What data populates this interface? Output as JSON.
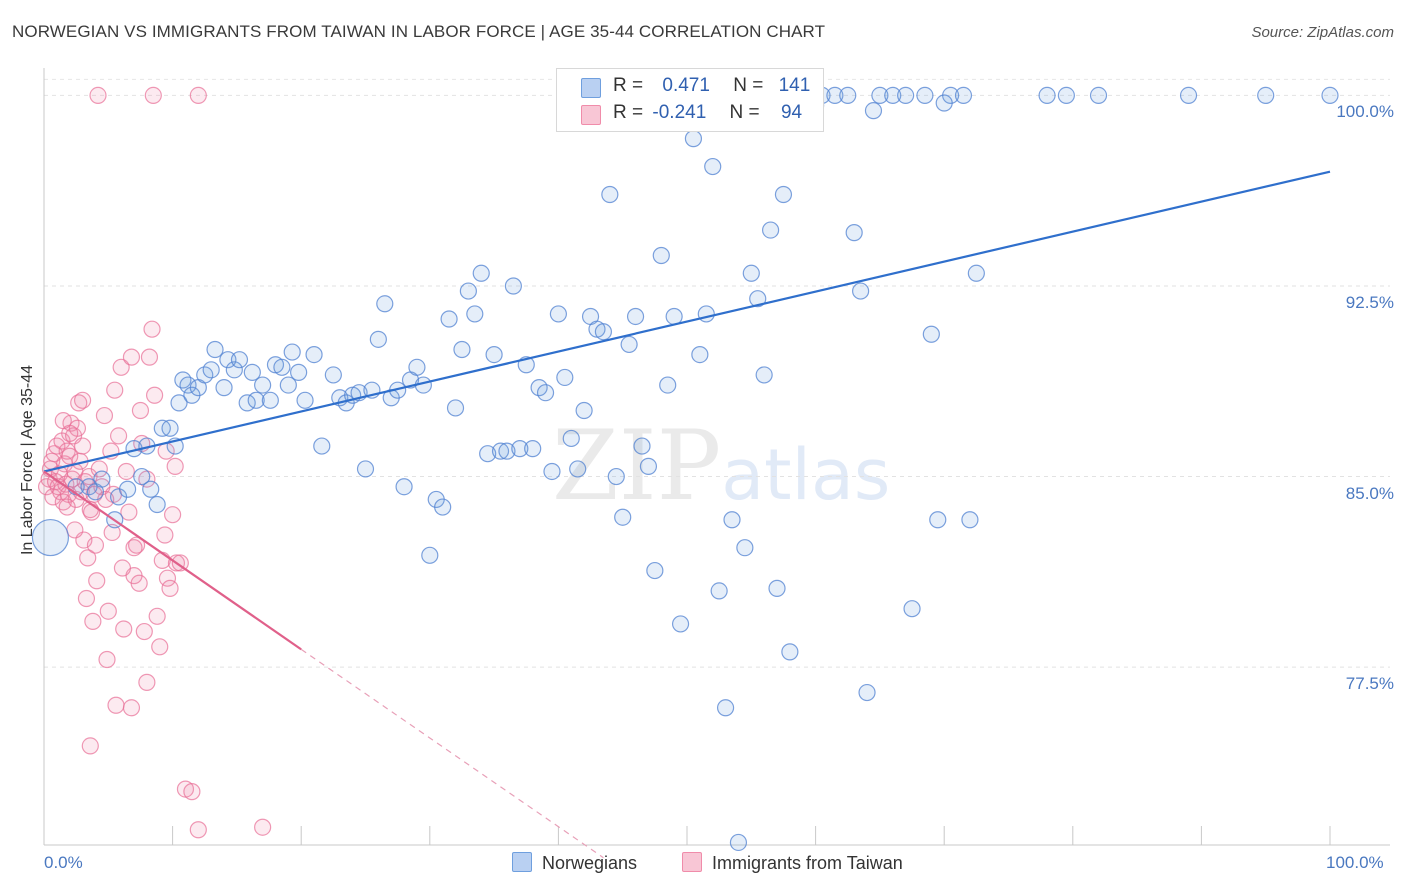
{
  "title": "NORWEGIAN VS IMMIGRANTS FROM TAIWAN IN LABOR FORCE | AGE 35-44 CORRELATION CHART",
  "source": "Source: ZipAtlas.com",
  "watermark": {
    "zip": "ZIP",
    "atlas": "atlas"
  },
  "colors": {
    "blue": "#6f9fde",
    "blue_line": "#2f6fcc",
    "pink": "#f08caa",
    "pink_line": "#e0608a"
  },
  "legend": {
    "rows": [
      {
        "r_label": "R =",
        "r_value": "0.471",
        "n_label": "N =",
        "n_value": "141"
      },
      {
        "r_label": "R =",
        "r_value": "-0.241",
        "n_label": "N =",
        "n_value": "94"
      }
    ]
  },
  "bottom_legend": {
    "norwegians": "Norwegians",
    "taiwan": "Immigrants from Taiwan"
  },
  "chart_data": {
    "type": "scatter",
    "title": "NORWEGIAN VS IMMIGRANTS FROM TAIWAN IN LABOR FORCE | AGE 35-44 CORRELATION CHART",
    "xlabel": "",
    "ylabel": "In Labor Force | Age 35-44",
    "xlim": [
      0,
      100
    ],
    "ylim": [
      70.5,
      101
    ],
    "x_tick_labels": [
      "0.0%",
      "100.0%"
    ],
    "y_ticks": [
      77.5,
      85.0,
      92.5,
      100.0
    ],
    "y_tick_labels": [
      "77.5%",
      "85.0%",
      "92.5%",
      "100.0%"
    ],
    "grid": true,
    "legend_position": "top-center",
    "series": [
      {
        "name": "Norwegians",
        "r": 0.471,
        "n": 141,
        "trend": {
          "x": [
            0,
            100
          ],
          "y": [
            85.2,
            97.0
          ]
        },
        "points": [
          [
            0.5,
            82.6
          ],
          [
            2.5,
            84.6
          ],
          [
            3.5,
            84.6
          ],
          [
            4.0,
            84.4
          ],
          [
            4.5,
            84.9
          ],
          [
            5.5,
            83.3
          ],
          [
            5.8,
            84.2
          ],
          [
            6.5,
            84.5
          ],
          [
            7.0,
            86.1
          ],
          [
            7.6,
            85.0
          ],
          [
            8.0,
            86.2
          ],
          [
            8.3,
            84.5
          ],
          [
            8.8,
            83.9
          ],
          [
            9.2,
            86.9
          ],
          [
            9.8,
            86.9
          ],
          [
            10.2,
            86.2
          ],
          [
            10.5,
            87.9
          ],
          [
            10.8,
            88.8
          ],
          [
            11.2,
            88.6
          ],
          [
            11.5,
            88.2
          ],
          [
            12.0,
            88.5
          ],
          [
            12.5,
            89.0
          ],
          [
            13.0,
            89.2
          ],
          [
            13.3,
            90.0
          ],
          [
            14.0,
            88.5
          ],
          [
            14.3,
            89.6
          ],
          [
            14.8,
            89.2
          ],
          [
            15.2,
            89.6
          ],
          [
            15.8,
            87.9
          ],
          [
            16.2,
            89.1
          ],
          [
            16.5,
            88.0
          ],
          [
            17.0,
            88.6
          ],
          [
            17.6,
            88.0
          ],
          [
            18.0,
            89.4
          ],
          [
            18.5,
            89.3
          ],
          [
            19.0,
            88.6
          ],
          [
            19.3,
            89.9
          ],
          [
            19.8,
            89.1
          ],
          [
            20.3,
            88.0
          ],
          [
            21.0,
            89.8
          ],
          [
            21.6,
            86.2
          ],
          [
            22.5,
            89.0
          ],
          [
            23.0,
            88.1
          ],
          [
            23.5,
            87.9
          ],
          [
            24.0,
            88.2
          ],
          [
            24.5,
            88.3
          ],
          [
            25.0,
            85.3
          ],
          [
            25.5,
            88.4
          ],
          [
            26.0,
            90.4
          ],
          [
            26.5,
            91.8
          ],
          [
            27.0,
            88.1
          ],
          [
            27.5,
            88.4
          ],
          [
            28.0,
            84.6
          ],
          [
            28.5,
            88.8
          ],
          [
            29.0,
            89.3
          ],
          [
            29.5,
            88.6
          ],
          [
            30.0,
            81.9
          ],
          [
            30.5,
            84.1
          ],
          [
            31.0,
            83.8
          ],
          [
            31.5,
            91.2
          ],
          [
            32.0,
            87.7
          ],
          [
            32.5,
            90.0
          ],
          [
            33.0,
            92.3
          ],
          [
            33.5,
            91.4
          ],
          [
            34.0,
            93.0
          ],
          [
            34.5,
            85.9
          ],
          [
            35.0,
            89.8
          ],
          [
            35.5,
            86.0
          ],
          [
            36.0,
            86.0
          ],
          [
            36.5,
            92.5
          ],
          [
            37.0,
            86.1
          ],
          [
            37.5,
            89.4
          ],
          [
            38.0,
            86.1
          ],
          [
            38.5,
            88.5
          ],
          [
            39.0,
            88.3
          ],
          [
            39.5,
            85.2
          ],
          [
            40.0,
            91.4
          ],
          [
            40.5,
            88.9
          ],
          [
            41.0,
            86.5
          ],
          [
            41.5,
            85.3
          ],
          [
            42.0,
            87.6
          ],
          [
            42.5,
            91.3
          ],
          [
            43.0,
            90.8
          ],
          [
            43.5,
            90.7
          ],
          [
            44.0,
            96.1
          ],
          [
            44.5,
            85.0
          ],
          [
            45.0,
            83.4
          ],
          [
            45.5,
            90.2
          ],
          [
            46.0,
            91.3
          ],
          [
            46.5,
            86.2
          ],
          [
            47.0,
            85.4
          ],
          [
            47.5,
            81.3
          ],
          [
            48.0,
            93.7
          ],
          [
            48.5,
            88.6
          ],
          [
            49.0,
            91.3
          ],
          [
            49.5,
            79.2
          ],
          [
            50.0,
            99.0
          ],
          [
            50.5,
            98.3
          ],
          [
            51.0,
            89.8
          ],
          [
            51.5,
            91.4
          ],
          [
            52.0,
            97.2
          ],
          [
            52.5,
            80.5
          ],
          [
            53.0,
            75.9
          ],
          [
            53.5,
            83.3
          ],
          [
            54.0,
            70.6
          ],
          [
            54.5,
            82.2
          ],
          [
            55.0,
            93.0
          ],
          [
            55.5,
            92.0
          ],
          [
            56.0,
            89.0
          ],
          [
            56.5,
            94.7
          ],
          [
            57.0,
            80.6
          ],
          [
            57.5,
            96.1
          ],
          [
            58.0,
            78.1
          ],
          [
            60.5,
            100.0
          ],
          [
            61.5,
            100.0
          ],
          [
            62.5,
            100.0
          ],
          [
            63.0,
            94.6
          ],
          [
            63.5,
            92.3
          ],
          [
            64.0,
            76.5
          ],
          [
            65.0,
            100.0
          ],
          [
            66.0,
            100.0
          ],
          [
            67.0,
            100.0
          ],
          [
            67.5,
            79.8
          ],
          [
            68.5,
            100.0
          ],
          [
            69.0,
            90.6
          ],
          [
            69.5,
            83.3
          ],
          [
            70.5,
            100.0
          ],
          [
            71.5,
            100.0
          ],
          [
            72.0,
            83.3
          ],
          [
            72.5,
            93.0
          ],
          [
            78.0,
            100.0
          ],
          [
            79.5,
            100.0
          ],
          [
            82.0,
            100.0
          ],
          [
            89.0,
            100.0
          ],
          [
            95.0,
            100.0
          ],
          [
            100.0,
            100.0
          ],
          [
            44.0,
            100.0
          ],
          [
            44.5,
            99.2
          ],
          [
            49.0,
            99.8
          ],
          [
            50.0,
            99.2
          ],
          [
            53.5,
            99.5
          ],
          [
            58.0,
            99.4
          ],
          [
            60.0,
            99.6
          ],
          [
            64.5,
            99.4
          ],
          [
            70.0,
            99.7
          ]
        ]
      },
      {
        "name": "Immigrants from Taiwan",
        "r": -0.241,
        "n": 94,
        "trend": {
          "x": [
            0,
            20
          ],
          "y": [
            85.2,
            78.2
          ]
        },
        "trend_dashed": {
          "x": [
            20,
            43.5
          ],
          "y": [
            78.2,
            70.0
          ]
        },
        "points": [
          [
            0.2,
            84.6
          ],
          [
            0.4,
            84.9
          ],
          [
            0.5,
            85.3
          ],
          [
            0.6,
            85.6
          ],
          [
            0.7,
            84.2
          ],
          [
            0.8,
            85.9
          ],
          [
            0.9,
            84.8
          ],
          [
            1.0,
            86.2
          ],
          [
            1.1,
            84.6
          ],
          [
            1.2,
            85.1
          ],
          [
            1.3,
            84.4
          ],
          [
            1.4,
            86.4
          ],
          [
            1.5,
            84.0
          ],
          [
            1.6,
            85.5
          ],
          [
            1.7,
            84.7
          ],
          [
            1.8,
            86.0
          ],
          [
            1.9,
            84.3
          ],
          [
            2.0,
            85.8
          ],
          [
            2.1,
            87.1
          ],
          [
            2.2,
            84.9
          ],
          [
            2.3,
            86.6
          ],
          [
            2.4,
            85.2
          ],
          [
            2.5,
            84.1
          ],
          [
            2.6,
            86.9
          ],
          [
            2.7,
            87.9
          ],
          [
            2.8,
            85.6
          ],
          [
            2.9,
            84.4
          ],
          [
            3.0,
            86.2
          ],
          [
            3.1,
            82.5
          ],
          [
            3.2,
            84.8
          ],
          [
            3.3,
            80.2
          ],
          [
            3.4,
            81.8
          ],
          [
            3.5,
            85.0
          ],
          [
            3.6,
            74.4
          ],
          [
            3.7,
            83.6
          ],
          [
            3.8,
            79.3
          ],
          [
            3.9,
            84.3
          ],
          [
            4.0,
            82.3
          ],
          [
            4.1,
            80.9
          ],
          [
            4.3,
            85.3
          ],
          [
            4.5,
            84.6
          ],
          [
            4.7,
            87.4
          ],
          [
            4.9,
            77.8
          ],
          [
            5.0,
            79.7
          ],
          [
            5.2,
            86.0
          ],
          [
            5.4,
            84.3
          ],
          [
            5.6,
            76.0
          ],
          [
            5.8,
            86.6
          ],
          [
            6.0,
            89.3
          ],
          [
            6.2,
            79.0
          ],
          [
            6.4,
            85.2
          ],
          [
            6.6,
            83.6
          ],
          [
            6.8,
            75.9
          ],
          [
            7.0,
            81.1
          ],
          [
            7.2,
            82.3
          ],
          [
            7.4,
            80.8
          ],
          [
            7.6,
            86.3
          ],
          [
            7.8,
            78.9
          ],
          [
            8.0,
            76.9
          ],
          [
            8.2,
            89.7
          ],
          [
            8.4,
            90.8
          ],
          [
            8.6,
            88.2
          ],
          [
            8.8,
            79.5
          ],
          [
            9.0,
            78.3
          ],
          [
            9.2,
            81.7
          ],
          [
            9.4,
            82.7
          ],
          [
            9.6,
            81.0
          ],
          [
            9.8,
            80.6
          ],
          [
            10.0,
            83.5
          ],
          [
            10.3,
            81.6
          ],
          [
            10.6,
            81.6
          ],
          [
            11.0,
            72.7
          ],
          [
            11.5,
            72.6
          ],
          [
            12.0,
            71.1
          ],
          [
            17.0,
            71.2
          ],
          [
            4.2,
            100.0
          ],
          [
            8.5,
            100.0
          ],
          [
            12.0,
            100.0
          ],
          [
            6.8,
            89.7
          ],
          [
            7.5,
            87.6
          ],
          [
            5.5,
            88.4
          ],
          [
            2.0,
            86.7
          ],
          [
            1.5,
            87.2
          ],
          [
            3.0,
            88.0
          ],
          [
            4.8,
            84.1
          ],
          [
            5.3,
            82.8
          ],
          [
            6.1,
            81.4
          ],
          [
            3.6,
            83.7
          ],
          [
            2.4,
            82.9
          ],
          [
            1.8,
            83.8
          ],
          [
            7.0,
            82.2
          ],
          [
            8.0,
            84.9
          ],
          [
            9.5,
            86.0
          ],
          [
            10.2,
            85.4
          ]
        ]
      }
    ]
  }
}
